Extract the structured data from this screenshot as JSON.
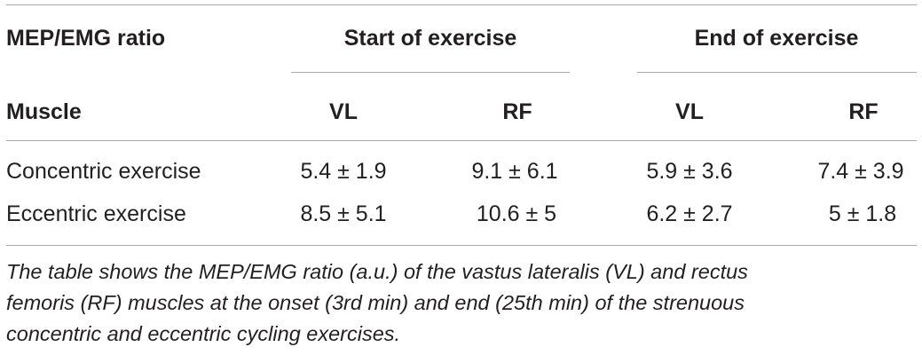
{
  "table": {
    "top_left_header": "MEP/EMG ratio",
    "group_headers": [
      "Start of exercise",
      "End of exercise"
    ],
    "row_header_label": "Muscle",
    "sub_headers": [
      "VL",
      "RF",
      "VL",
      "RF"
    ],
    "rows": [
      {
        "label": "Concentric exercise",
        "cells": [
          "5.4 ± 1.9",
          "9.1 ± 6.1",
          "5.9 ± 3.6",
          "7.4 ± 3.9"
        ]
      },
      {
        "label": "Eccentric exercise",
        "cells": [
          "8.5 ± 5.1",
          "10.6 ± 5",
          "6.2 ± 2.7",
          "5 ± 1.8"
        ]
      }
    ]
  },
  "footnote": {
    "lines": [
      "The table shows the MEP/EMG ratio (a.u.) of the vastus lateralis (VL) and rectus",
      "femoris (RF) muscles at the onset (3rd min) and end (25th min) of the strenuous",
      "concentric and eccentric cycling exercises."
    ]
  }
}
